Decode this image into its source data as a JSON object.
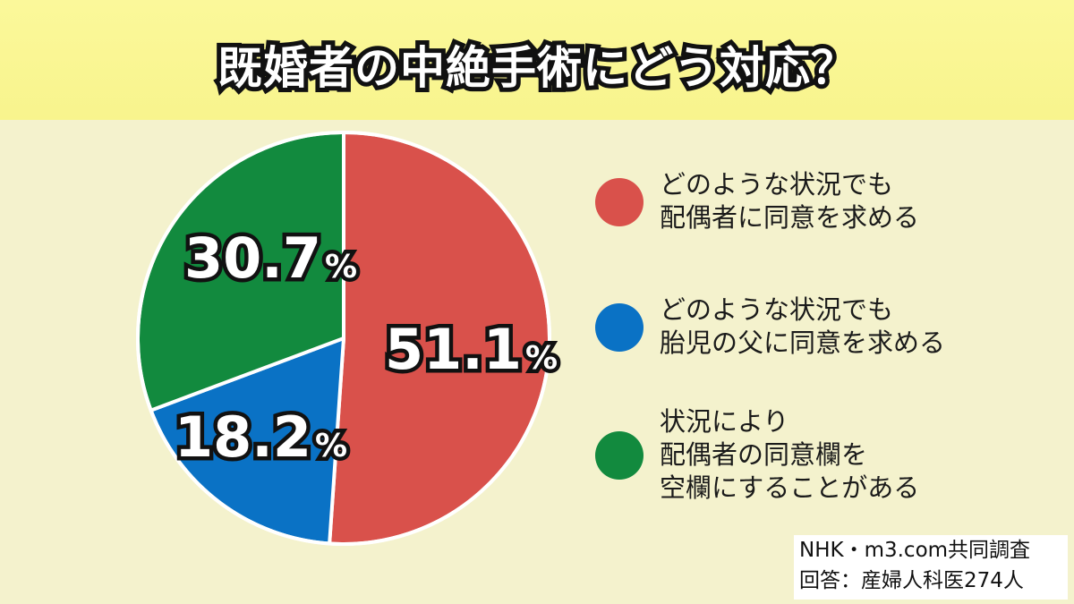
{
  "title": "既婚者の中絶手術にどう対応？",
  "chart_data": {
    "type": "pie",
    "slices": [
      {
        "label": "どのような状況でも\n配偶者に同意を求める",
        "value": 51.1,
        "color": "#d9514b"
      },
      {
        "label": "どのような状況でも\n胎児の父に同意を求める",
        "value": 18.2,
        "color": "#0a72c5"
      },
      {
        "label": "状況により\n配偶者の同意欄を\n空欄にすることがある",
        "value": 30.7,
        "color": "#128a3e"
      }
    ],
    "value_labels": [
      "51.1",
      "18.2",
      "30.7"
    ],
    "unit": "%",
    "start_angle_deg": 0,
    "direction": "clockwise"
  },
  "source": {
    "line1": "NHK・m3.com共同調査",
    "line2": "回答：産婦人科医274人"
  }
}
